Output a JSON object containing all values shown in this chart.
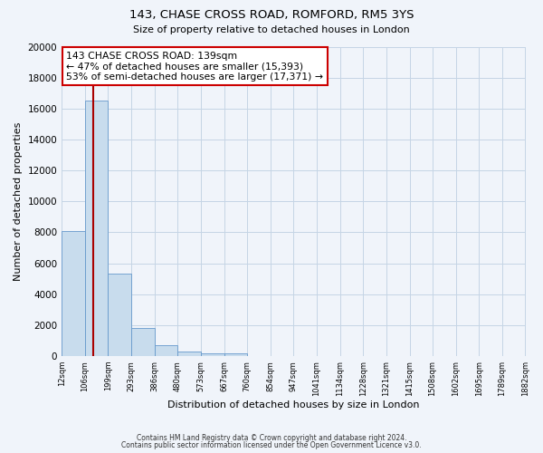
{
  "title": "143, CHASE CROSS ROAD, ROMFORD, RM5 3YS",
  "subtitle": "Size of property relative to detached houses in London",
  "xlabel": "Distribution of detached houses by size in London",
  "ylabel": "Number of detached properties",
  "bin_labels": [
    "12sqm",
    "106sqm",
    "199sqm",
    "293sqm",
    "386sqm",
    "480sqm",
    "573sqm",
    "667sqm",
    "760sqm",
    "854sqm",
    "947sqm",
    "1041sqm",
    "1134sqm",
    "1228sqm",
    "1321sqm",
    "1415sqm",
    "1508sqm",
    "1602sqm",
    "1695sqm",
    "1789sqm",
    "1882sqm"
  ],
  "bin_edges": [
    12,
    106,
    199,
    293,
    386,
    480,
    573,
    667,
    760,
    854,
    947,
    1041,
    1134,
    1228,
    1321,
    1415,
    1508,
    1602,
    1695,
    1789,
    1882
  ],
  "bar_heights": [
    8100,
    16500,
    5300,
    1800,
    700,
    300,
    200,
    150,
    0,
    0,
    0,
    0,
    0,
    0,
    0,
    0,
    0,
    0,
    0,
    0
  ],
  "bar_color": "#c8dced",
  "bar_edge_color": "#6699cc",
  "vline_x": 139,
  "vline_color": "#aa0000",
  "annotation_title": "143 CHASE CROSS ROAD: 139sqm",
  "annotation_line1": "← 47% of detached houses are smaller (15,393)",
  "annotation_line2": "53% of semi-detached houses are larger (17,371) →",
  "annotation_box_color": "#ffffff",
  "annotation_box_edge": "#cc0000",
  "ylim": [
    0,
    20000
  ],
  "yticks": [
    0,
    2000,
    4000,
    6000,
    8000,
    10000,
    12000,
    14000,
    16000,
    18000,
    20000
  ],
  "footer1": "Contains HM Land Registry data © Crown copyright and database right 2024.",
  "footer2": "Contains public sector information licensed under the Open Government Licence v3.0.",
  "bg_color": "#f0f4fa",
  "grid_color": "#c5d5e5"
}
